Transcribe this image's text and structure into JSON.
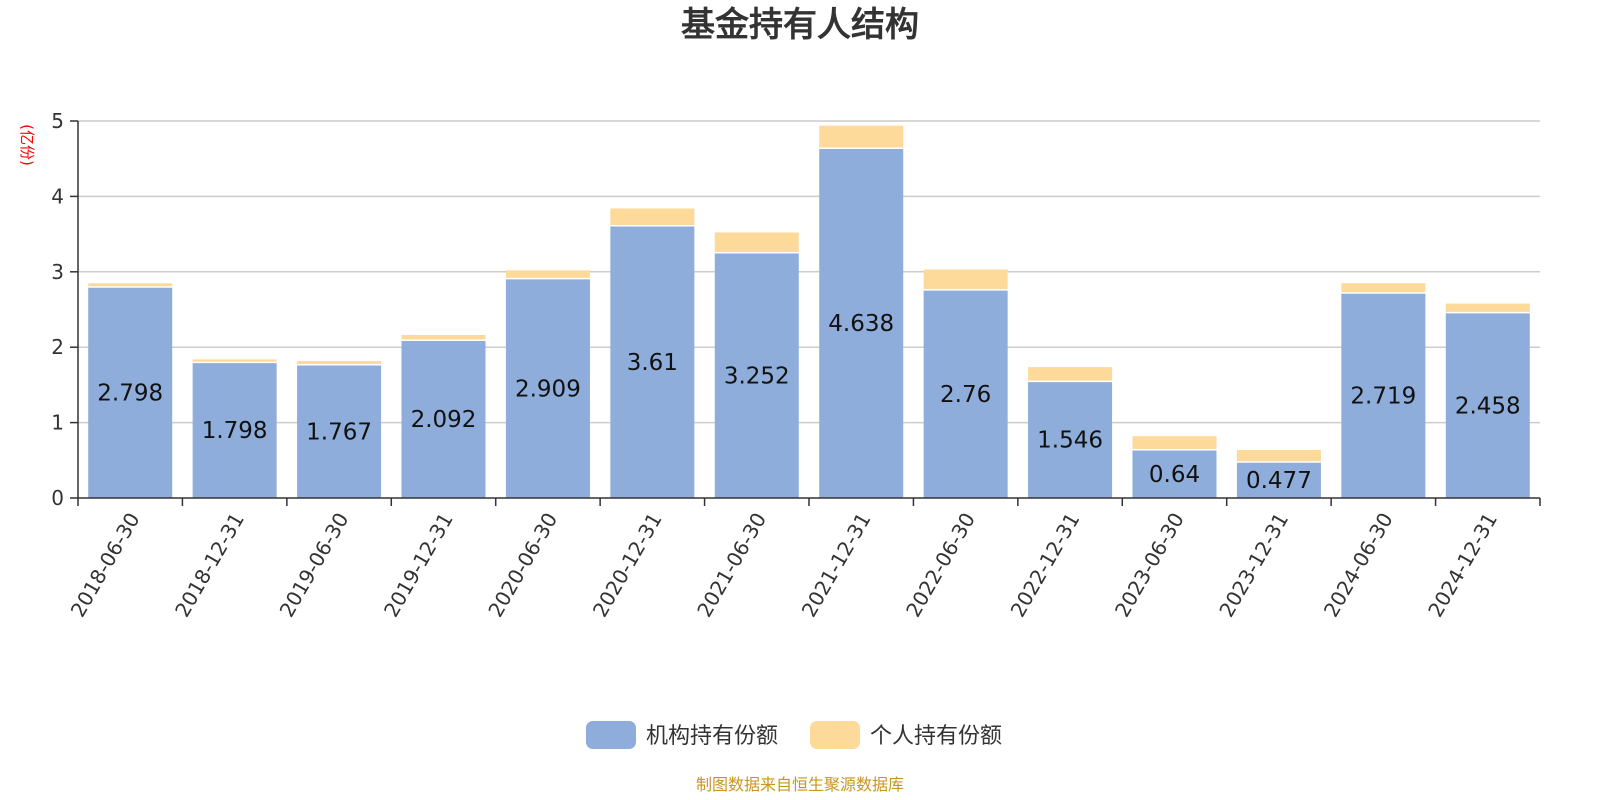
{
  "chart_data": {
    "type": "bar",
    "stacked": true,
    "title": "基金持有人结构",
    "unit_label": "(亿份)",
    "categories": [
      "2018-06-30",
      "2018-12-31",
      "2019-06-30",
      "2019-12-31",
      "2020-06-30",
      "2020-12-31",
      "2021-06-30",
      "2021-12-31",
      "2022-06-30",
      "2022-12-31",
      "2023-06-30",
      "2023-12-31",
      "2024-06-30",
      "2024-12-31"
    ],
    "series": [
      {
        "name": "机构持有份额",
        "color": "#8eadda",
        "values": [
          2.798,
          1.798,
          1.767,
          2.092,
          2.909,
          3.61,
          3.252,
          4.638,
          2.76,
          1.546,
          0.64,
          0.477,
          2.719,
          2.458
        ],
        "labels": [
          "2.798",
          "1.798",
          "1.767",
          "2.092",
          "2.909",
          "3.61",
          "3.252",
          "4.638",
          "2.76",
          "1.546",
          "0.64",
          "0.477",
          "2.719",
          "2.458"
        ]
      },
      {
        "name": "个人持有份额",
        "color": "#fdd99a",
        "values": [
          0.05,
          0.04,
          0.05,
          0.07,
          0.11,
          0.23,
          0.27,
          0.3,
          0.27,
          0.19,
          0.18,
          0.16,
          0.13,
          0.12
        ]
      }
    ],
    "ylim": [
      0,
      5
    ],
    "yticks": [
      "0",
      "1",
      "2",
      "3",
      "4",
      "5"
    ],
    "grid": true,
    "legend_position": "bottom-center",
    "source_note": "制图数据来自恒生聚源数据库"
  }
}
